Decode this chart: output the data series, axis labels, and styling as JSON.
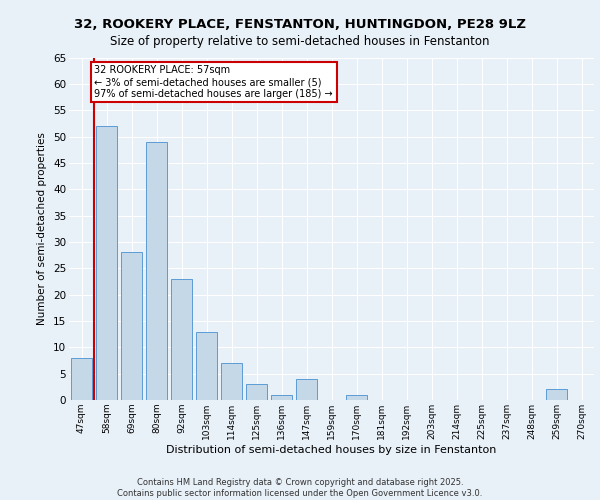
{
  "title_line1": "32, ROOKERY PLACE, FENSTANTON, HUNTINGDON, PE28 9LZ",
  "title_line2": "Size of property relative to semi-detached houses in Fenstanton",
  "xlabel": "Distribution of semi-detached houses by size in Fenstanton",
  "ylabel": "Number of semi-detached properties",
  "categories": [
    "47sqm",
    "58sqm",
    "69sqm",
    "80sqm",
    "92sqm",
    "103sqm",
    "114sqm",
    "125sqm",
    "136sqm",
    "147sqm",
    "159sqm",
    "170sqm",
    "181sqm",
    "192sqm",
    "203sqm",
    "214sqm",
    "225sqm",
    "237sqm",
    "248sqm",
    "259sqm",
    "270sqm"
  ],
  "values": [
    8,
    52,
    28,
    49,
    23,
    13,
    7,
    3,
    1,
    4,
    0,
    1,
    0,
    0,
    0,
    0,
    0,
    0,
    0,
    2,
    0
  ],
  "bar_color": "#c5d8e8",
  "bar_edge_color": "#5b9bd5",
  "annotation_text": "32 ROOKERY PLACE: 57sqm\n← 3% of semi-detached houses are smaller (5)\n97% of semi-detached houses are larger (185) →",
  "annotation_box_color": "#ffffff",
  "annotation_box_edge_color": "#cc0000",
  "ylim": [
    0,
    65
  ],
  "yticks": [
    0,
    5,
    10,
    15,
    20,
    25,
    30,
    35,
    40,
    45,
    50,
    55,
    60,
    65
  ],
  "background_color": "#e8f0f8",
  "plot_bg_color": "#e8f0f8",
  "grid_color": "#ffffff",
  "footer_line1": "Contains HM Land Registry data © Crown copyright and database right 2025.",
  "footer_line2": "Contains public sector information licensed under the Open Government Licence v3.0.",
  "marker_color": "#cc0000"
}
